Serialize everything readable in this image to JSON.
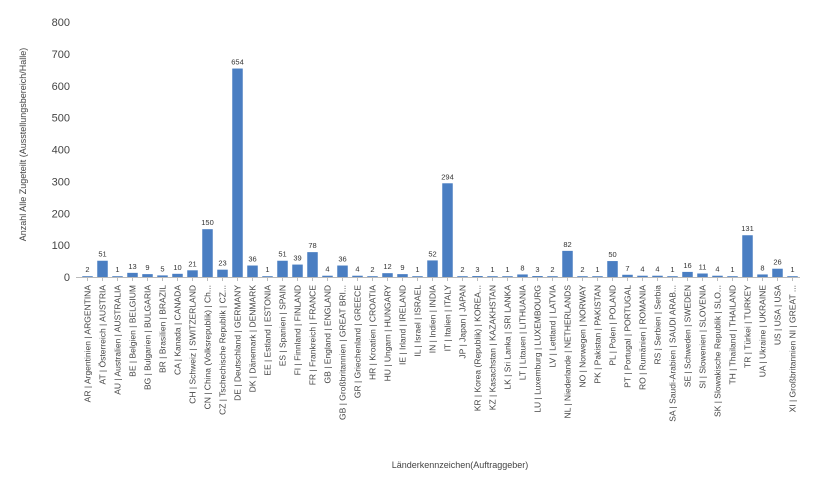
{
  "chart_data": {
    "type": "bar",
    "title": "",
    "xlabel": "Länderkennzeichen(Auftraggeber)",
    "ylabel": "Anzahl Alle Zugeteilt (Ausstellungsbereich/Halle)",
    "ylim": [
      0,
      800
    ],
    "yticks": [
      0,
      100,
      200,
      300,
      400,
      500,
      600,
      700,
      800
    ],
    "grid": false,
    "legend": "none",
    "bar_color": "#4a7ec2",
    "categories": [
      "AR | Argentinien | ARGENTINA",
      "AT | Österreich | AUSTRIA",
      "AU | Australien | AUSTRALIA",
      "BE | Belgien | BELGIUM",
      "BG | Bulgarien | BULGARIA",
      "BR | Brasilien | BRAZIL",
      "CA | Kanada | CANADA",
      "CH | Schweiz | SWITZERLAND",
      "CN | China (Volksrepublik) | Ch...",
      "CZ | Tschechische Republik | CZ...",
      "DE | Deutschland | GERMANY",
      "DK | Dänemark | DENMARK",
      "EE | Estland | ESTONIA",
      "ES | Spanien | SPAIN",
      "FI | Finnland | FINLAND",
      "FR | Frankreich | FRANCE",
      "GB | England | ENGLAND",
      "GB | Großbritannien | GREAT BRI...",
      "GR | Griechenland | GREECE",
      "HR | Kroatien | CROATIA",
      "HU | Ungarn | HUNGARY",
      "IE | Irland | IRELAND",
      "IL | Israel | ISRAEL",
      "IN | Indien | INDIA",
      "IT | Italien | ITALY",
      "JP | Japan | JAPAN",
      "KR | Korea (Republik) | KOREA...",
      "KZ | Kasachstan | KAZAKHSTAN",
      "LK | Sri Lanka | SRI LANKA",
      "LT | Litauen | LITHUANIA",
      "LU | Luxemburg | LUXEMBOURG",
      "LV | Lettland | LATVIA",
      "NL | Niederlande | NETHERLANDS",
      "NO | Norwegen | NORWAY",
      "PK | Pakistan | PAKISTAN",
      "PL | Polen | POLAND",
      "PT | Portugal | PORTUGAL",
      "RO | Rumänien | ROMANIA",
      "RS | Serbien | Serbia",
      "SA | Saudi-Arabien | SAUDI ARAB...",
      "SE | Schweden | SWEDEN",
      "SI | Slowenien | SLOVENIA",
      "SK | Slowakische Republik | SLO...",
      "TH | Thailand | THAILAND",
      "TR | Türkei | TURKEY",
      "UA | Ukraine | UKRAINE",
      "US | USA | USA",
      "XI | Großbritannien NI | GREAT ..."
    ],
    "values": [
      2,
      51,
      1,
      13,
      9,
      5,
      10,
      21,
      150,
      23,
      654,
      36,
      1,
      51,
      39,
      78,
      4,
      36,
      4,
      2,
      12,
      9,
      1,
      52,
      294,
      2,
      3,
      1,
      1,
      8,
      3,
      2,
      82,
      2,
      1,
      50,
      7,
      4,
      4,
      1,
      16,
      11,
      4,
      1,
      131,
      8,
      26,
      1
    ]
  }
}
